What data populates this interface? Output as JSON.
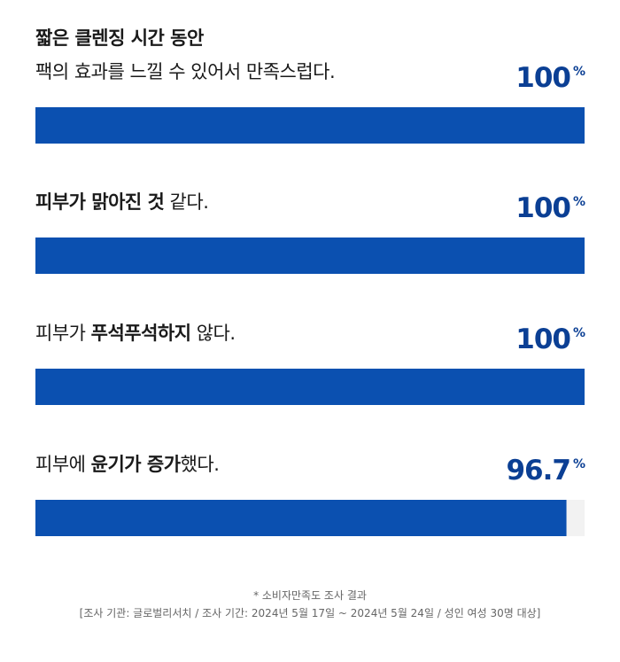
{
  "chart_data": {
    "type": "hbar",
    "categories": [
      [
        [
          {
            "text": "짧은 클렌징 시간 동안",
            "bold": true
          }
        ],
        [
          {
            "text": "팩의 효과를 느낄 수 있어서 만족스럽다.",
            "bold": false
          }
        ]
      ],
      [
        [
          {
            "text": "피부가 맑아진 것",
            "bold": true
          },
          {
            "text": " 같다.",
            "bold": false
          }
        ]
      ],
      [
        [
          {
            "text": "피부가 ",
            "bold": false
          },
          {
            "text": "푸석푸석하지",
            "bold": true
          },
          {
            "text": " 않다.",
            "bold": false
          }
        ]
      ],
      [
        [
          {
            "text": "피부에 ",
            "bold": false
          },
          {
            "text": "윤기가 증가",
            "bold": true
          },
          {
            "text": "했다.",
            "bold": false
          }
        ]
      ]
    ],
    "values": [
      100,
      100,
      100,
      96.7
    ],
    "value_labels": [
      "100%",
      "100%",
      "100%",
      "96.7%"
    ],
    "color": "#0b50b0",
    "xlim": [
      0,
      100
    ],
    "footnotes": [
      "* 소비자만족도 조사 결과",
      "[조사 기관: 글로벌리서치 / 조사 기간: 2024년 5월 17일 ~ 2024년 5월 24일 / 성인 여성 30명 대상]"
    ]
  }
}
